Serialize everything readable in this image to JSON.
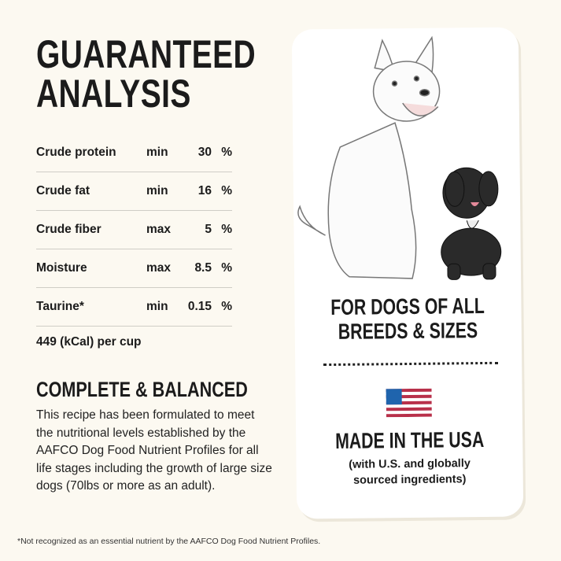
{
  "title": {
    "line1": "GUARANTEED",
    "line2": "ANALYSIS"
  },
  "analysis": [
    {
      "nutrient": "Crude protein",
      "qualifier": "min",
      "value": "30",
      "unit": "%"
    },
    {
      "nutrient": "Crude fat",
      "qualifier": "min",
      "value": "16",
      "unit": "%"
    },
    {
      "nutrient": "Crude fiber",
      "qualifier": "max",
      "value": "5",
      "unit": "%"
    },
    {
      "nutrient": "Moisture",
      "qualifier": "max",
      "value": "8.5",
      "unit": "%"
    },
    {
      "nutrient": "Taurine*",
      "qualifier": "min",
      "value": "0.15",
      "unit": "%"
    }
  ],
  "calories": "449 (kCal) per cup",
  "complete": {
    "heading": "COMPLETE & BALANCED",
    "body": "This recipe has been formulated to meet the nutritional levels established by the AAFCO Dog Food Nutrient Profiles for all life stages including the growth of large size dogs (70lbs or more as an adult)."
  },
  "card": {
    "breeds_line1": "FOR DOGS OF ALL",
    "breeds_line2": "BREEDS & SIZES",
    "made_in": "MADE IN THE USA",
    "sourced_line1": "(with U.S. and globally",
    "sourced_line2": "sourced ingredients)",
    "flag_colors": {
      "blue": "#1f64ad",
      "red": "#b8304a"
    }
  },
  "footnote": "*Not recognized as an essential nutrient by the AAFCO Dog Food Nutrient Profiles."
}
